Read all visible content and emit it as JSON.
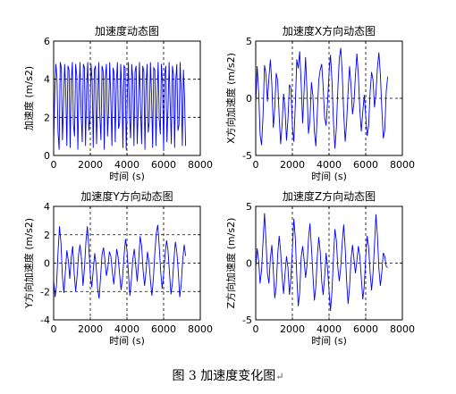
{
  "figure": {
    "caption": "图 3  加速度变化图",
    "return_mark": "↵"
  },
  "chart_data": [
    {
      "type": "line",
      "title": "加速度动态图",
      "xlabel": "时间 (s)",
      "ylabel": "加速度 (m/s2)",
      "xlim": [
        0,
        8000
      ],
      "ylim": [
        0,
        6
      ],
      "xticks": [
        0,
        2000,
        4000,
        6000,
        8000
      ],
      "yticks": [
        0,
        2,
        4,
        6
      ],
      "grid": "dashed, major x and y",
      "series": [
        {
          "color": "#0000ff",
          "x": [
            0,
            60,
            120,
            180,
            240,
            300,
            360,
            420,
            480,
            540,
            600,
            660,
            720,
            780,
            840,
            900,
            960,
            1020,
            1080,
            1140,
            1200,
            1260,
            1320,
            1380,
            1440,
            1500,
            1560,
            1620,
            1680,
            1740,
            1800,
            1860,
            1920,
            1980,
            2040,
            2100,
            2160,
            2220,
            2280,
            2340,
            2400,
            2460,
            2520,
            2580,
            2640,
            2700,
            2760,
            2820,
            2880,
            2940,
            3000,
            3060,
            3120,
            3180,
            3240,
            3300,
            3360,
            3420,
            3480,
            3540,
            3600,
            3660,
            3720,
            3780,
            3840,
            3900,
            3960,
            4020,
            4080,
            4140,
            4200,
            4260,
            4320,
            4380,
            4440,
            4500,
            4560,
            4620,
            4680,
            4740,
            4800,
            4860,
            4920,
            4980,
            5040,
            5100,
            5160,
            5220,
            5280,
            5340,
            5400,
            5460,
            5520,
            5580,
            5640,
            5700,
            5760,
            5820,
            5880,
            5940,
            6000,
            6060,
            6120,
            6180,
            6240,
            6300,
            6360,
            6420,
            6480,
            6540,
            6600,
            6660,
            6720,
            6780,
            6840,
            6900,
            6960,
            7020,
            7080,
            7140,
            7200
          ],
          "y": [
            0.6,
            3.2,
            4.8,
            4.1,
            1.2,
            0.3,
            4.9,
            4.6,
            0.8,
            2.7,
            4.8,
            3.4,
            0.5,
            4.7,
            4.5,
            0.4,
            3.9,
            4.9,
            1.6,
            1.0,
            4.8,
            4.2,
            0.3,
            3.3,
            4.9,
            2.2,
            0.7,
            4.8,
            4.6,
            0.5,
            3.6,
            4.9,
            1.3,
            1.9,
            4.8,
            3.9,
            0.4,
            4.5,
            4.7,
            0.6,
            2.8,
            4.9,
            2.1,
            0.8,
            4.7,
            4.4,
            0.3,
            4.1,
            4.8,
            1.0,
            2.4,
            4.9,
            2.9,
            0.5,
            4.6,
            4.3,
            0.7,
            3.8,
            4.9,
            1.4,
            1.7,
            4.8,
            3.5,
            0.4,
            4.7,
            4.6,
            0.3,
            3.1,
            4.9,
            2.0,
            0.9,
            4.8,
            4.0,
            0.5,
            4.4,
            4.7,
            0.6,
            2.6,
            4.9,
            2.5,
            0.6,
            4.7,
            4.4,
            0.3,
            3.7,
            4.8,
            1.2,
            1.8,
            4.9,
            3.2,
            0.4,
            4.6,
            4.5,
            0.5,
            3.0,
            4.9,
            1.9,
            1.1,
            4.8,
            3.8,
            0.3,
            4.3,
            4.7,
            0.7,
            2.5,
            4.9,
            2.6,
            0.6,
            4.7,
            4.2,
            0.4,
            3.9,
            4.8,
            1.3,
            1.6,
            4.9,
            3.4,
            0.5,
            4.5,
            3.1,
            0.5
          ]
        }
      ]
    },
    {
      "type": "line",
      "title": "加速度X方向动态图",
      "xlabel": "时间 (s)",
      "ylabel": "X方向加速度 (m/s2)",
      "xlim": [
        0,
        8000
      ],
      "ylim": [
        -5,
        5
      ],
      "xticks": [
        0,
        2000,
        4000,
        6000,
        8000
      ],
      "yticks": [
        -5,
        0,
        5
      ],
      "grid": "dashed, major x and y",
      "series": [
        {
          "color": "#0000ff",
          "x": [
            0,
            80,
            160,
            240,
            320,
            400,
            480,
            560,
            640,
            720,
            800,
            880,
            960,
            1040,
            1120,
            1200,
            1280,
            1360,
            1440,
            1520,
            1600,
            1680,
            1760,
            1840,
            1920,
            2000,
            2080,
            2160,
            2240,
            2320,
            2400,
            2480,
            2560,
            2640,
            2720,
            2800,
            2880,
            2960,
            3040,
            3120,
            3200,
            3280,
            3360,
            3440,
            3520,
            3600,
            3680,
            3760,
            3840,
            3920,
            4000,
            4080,
            4160,
            4240,
            4320,
            4400,
            4480,
            4560,
            4640,
            4720,
            4800,
            4880,
            4960,
            5040,
            5120,
            5200,
            5280,
            5360,
            5440,
            5520,
            5600,
            5680,
            5760,
            5840,
            5920,
            6000,
            6080,
            6160,
            6240,
            6320,
            6400,
            6480,
            6560,
            6640,
            6720,
            6800,
            6880,
            6960,
            7040,
            7120,
            7200
          ],
          "y": [
            -0.5,
            2.8,
            0.6,
            -3.2,
            -4.1,
            -1.5,
            2.9,
            2.1,
            -0.3,
            1.8,
            3.4,
            1.2,
            -2.6,
            -0.8,
            2.2,
            1.5,
            -1.6,
            -4.0,
            -2.3,
            0.4,
            -0.9,
            -3.7,
            -1.8,
            1.2,
            0.9,
            -2.4,
            -3.8,
            -0.6,
            3.4,
            2.6,
            4.1,
            1.3,
            -2.2,
            0.7,
            3.6,
            0.5,
            -3.1,
            -1.9,
            1.4,
            0.2,
            -2.9,
            -4.2,
            -1.2,
            1.6,
            2.5,
            3.0,
            1.0,
            -1.7,
            -2.4,
            -0.3,
            2.2,
            3.8,
            1.5,
            -2.0,
            -4.4,
            -2.6,
            0.8,
            3.5,
            4.4,
            2.2,
            -1.3,
            -3.8,
            -2.1,
            0.6,
            2.8,
            1.1,
            -1.4,
            -0.4,
            2.0,
            3.9,
            2.0,
            -1.0,
            -2.9,
            -1.2,
            0.3,
            -1.5,
            -3.3,
            -2.4,
            0.5,
            2.3,
            1.6,
            -0.8,
            0.4,
            2.7,
            4.0,
            2.1,
            -0.9,
            -3.5,
            -2.8,
            0.6,
            1.9
          ]
        }
      ]
    },
    {
      "type": "line",
      "title": "加速度Y方向动态图",
      "xlabel": "时间 (s)",
      "ylabel": "Y方向加速度 (m/s2)",
      "xlim": [
        0,
        8000
      ],
      "ylim": [
        -4,
        4
      ],
      "xticks": [
        0,
        2000,
        4000,
        6000,
        8000
      ],
      "yticks": [
        -4,
        -2,
        0,
        2,
        4
      ],
      "grid": "dashed, major x and y",
      "series": [
        {
          "color": "#0000ff",
          "x": [
            0,
            80,
            160,
            240,
            320,
            400,
            480,
            560,
            640,
            720,
            800,
            880,
            960,
            1040,
            1120,
            1200,
            1280,
            1360,
            1440,
            1520,
            1600,
            1680,
            1760,
            1840,
            1920,
            2000,
            2080,
            2160,
            2240,
            2320,
            2400,
            2480,
            2560,
            2640,
            2720,
            2800,
            2880,
            2960,
            3040,
            3120,
            3200,
            3280,
            3360,
            3440,
            3520,
            3600,
            3680,
            3760,
            3840,
            3920,
            4000,
            4080,
            4160,
            4240,
            4320,
            4400,
            4480,
            4560,
            4640,
            4720,
            4800,
            4880,
            4960,
            5040,
            5120,
            5200,
            5280,
            5360,
            5440,
            5520,
            5600,
            5680,
            5760,
            5840,
            5920,
            6000,
            6080,
            6160,
            6240,
            6320,
            6400,
            6480,
            6560,
            6640,
            6720,
            6800,
            6880,
            6960,
            7040,
            7120,
            7200
          ],
          "y": [
            -1.2,
            -2.4,
            -1.5,
            0.8,
            2.6,
            1.4,
            -1.0,
            -2.1,
            -0.6,
            0.9,
            0.2,
            -1.1,
            0.4,
            1.2,
            -0.7,
            -2.0,
            -0.9,
            0.6,
            1.3,
            0.3,
            -1.6,
            -0.4,
            1.5,
            2.6,
            1.1,
            -0.8,
            -1.7,
            -0.5,
            0.7,
            -0.2,
            -1.8,
            -2.5,
            -1.0,
            0.6,
            1.1,
            0.2,
            -0.9,
            -0.3,
            0.8,
            0.5,
            -0.6,
            -1.5,
            -0.4,
            1.0,
            0.4,
            -0.8,
            -1.9,
            -1.0,
            0.5,
            1.7,
            0.9,
            -0.7,
            -2.3,
            -1.2,
            0.3,
            1.0,
            -0.2,
            -1.3,
            0.2,
            1.9,
            1.2,
            -0.5,
            -1.6,
            -0.6,
            0.8,
            0.1,
            -1.2,
            -2.3,
            -1.1,
            0.7,
            2.1,
            2.7,
            1.2,
            -0.6,
            -1.8,
            -0.8,
            0.6,
            1.6,
            0.9,
            -0.7,
            -2.2,
            -1.4,
            0.2,
            1.5,
            0.8,
            -0.6,
            -2.4,
            -1.5,
            0.2,
            1.3,
            0.5
          ]
        }
      ]
    },
    {
      "type": "line",
      "title": "加速度Z方向动态图",
      "xlabel": "时间 (s)",
      "ylabel": "Z方向加速度 (m/s2)",
      "xlim": [
        0,
        8000
      ],
      "ylim": [
        -5,
        5
      ],
      "xticks": [
        0,
        2000,
        4000,
        6000,
        8000
      ],
      "yticks": [
        -5,
        0,
        5
      ],
      "grid": "dashed, major x and y",
      "series": [
        {
          "color": "#0000ff",
          "x": [
            0,
            80,
            160,
            240,
            320,
            400,
            480,
            560,
            640,
            720,
            800,
            880,
            960,
            1040,
            1120,
            1200,
            1280,
            1360,
            1440,
            1520,
            1600,
            1680,
            1760,
            1840,
            1920,
            2000,
            2080,
            2160,
            2240,
            2320,
            2400,
            2480,
            2560,
            2640,
            2720,
            2800,
            2880,
            2960,
            3040,
            3120,
            3200,
            3280,
            3360,
            3440,
            3520,
            3600,
            3680,
            3760,
            3840,
            3920,
            4000,
            4080,
            4160,
            4240,
            4320,
            4400,
            4480,
            4560,
            4640,
            4720,
            4800,
            4880,
            4960,
            5040,
            5120,
            5200,
            5280,
            5360,
            5440,
            5520,
            5600,
            5680,
            5760,
            5840,
            5920,
            6000,
            6080,
            6160,
            6240,
            6320,
            6400,
            6480,
            6560,
            6640,
            6720,
            6800,
            6880,
            6960,
            7040,
            7120,
            7200
          ],
          "y": [
            -0.4,
            1.3,
            0.2,
            -1.8,
            -0.6,
            1.9,
            4.4,
            2.0,
            -0.9,
            -1.8,
            0.4,
            1.6,
            -0.6,
            -3.1,
            -2.0,
            0.8,
            2.4,
            1.0,
            -1.2,
            -2.7,
            -0.9,
            0.6,
            -0.4,
            -2.8,
            -1.3,
            1.2,
            3.9,
            2.2,
            -1.1,
            -3.8,
            -2.6,
            0.5,
            1.5,
            0.3,
            -1.3,
            -0.2,
            2.2,
            3.5,
            1.4,
            -1.0,
            -3.3,
            -2.1,
            0.6,
            2.3,
            1.0,
            -1.6,
            -2.8,
            -1.2,
            0.9,
            -0.5,
            -2.4,
            -4.2,
            -2.5,
            0.4,
            3.0,
            2.0,
            -0.4,
            -1.6,
            -0.3,
            1.8,
            3.4,
            1.4,
            -1.6,
            -3.6,
            -2.1,
            0.3,
            1.6,
            0.4,
            -0.9,
            0.2,
            1.5,
            0.6,
            -1.3,
            -3.2,
            -2.0,
            0.5,
            2.4,
            1.4,
            -0.8,
            -2.4,
            -0.9,
            1.6,
            4.3,
            2.4,
            -0.5,
            -2.0,
            -0.8,
            0.9,
            0.6,
            -0.3,
            -0.4
          ]
        }
      ]
    }
  ]
}
